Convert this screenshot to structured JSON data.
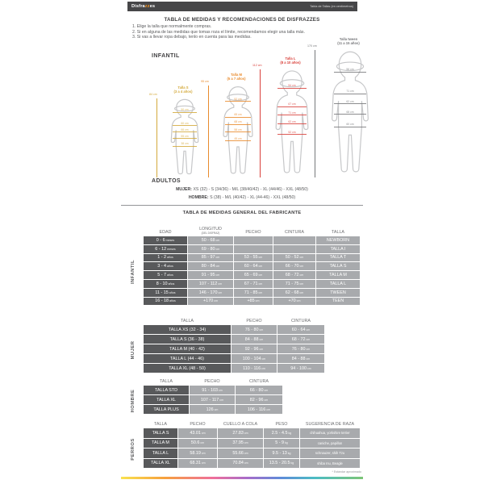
{
  "header": {
    "logo_prefix": "Disfra",
    "logo_accent": "zz",
    "logo_suffix": "es",
    "right_text": "Tabla de Tallas (en centímetros)"
  },
  "intro": {
    "title": "TABLA DE MEDIDAS Y RECOMENDACIONES DE DISFRAZZES",
    "steps": [
      "1. Elige la talla que normalmente compras.",
      "2. Si en alguna de las medidas que tomas roza el límite, recomendamos elegir una talla más.",
      "3. Si vas a llevar ropa debajo, tenlo en cuenta para las medidas."
    ]
  },
  "sections": {
    "infantil_heading": "INFANTIL",
    "adultos_heading": "ADULTOS",
    "fabricante_title": "TABLA DE MEDIDAS GENERAL DEL FABRICANTE"
  },
  "figures": [
    {
      "talla": "Talla S",
      "edad": "(3 a 4 años)",
      "altura": "84 cm",
      "color": "#d4aa3c",
      "medidas": [
        "50 cm",
        "60 cm",
        "66 cm",
        "55 cm",
        "38 cm"
      ]
    },
    {
      "talla": "Talla M",
      "edad": "(5 a 7 años)",
      "altura": "95 cm",
      "color": "#e98b2d",
      "medidas": [
        "52 cm",
        "65 cm",
        "68 cm",
        "58 cm",
        "45 cm"
      ]
    },
    {
      "talla": "Talla L",
      "edad": "(8 a 10 años)",
      "altura": "112 cm",
      "color": "#d9403a",
      "medidas": [
        "54 cm",
        "67 cm",
        "71 cm",
        "62 cm",
        "52 cm"
      ]
    },
    {
      "talla": "Talla tween",
      "edad": "(11 a 15 años)",
      "altura": "170 cm",
      "color": "#77787b",
      "medidas": [
        "56 cm",
        "71 cm",
        "62 cm",
        "68 cm",
        "60 cm"
      ]
    }
  ],
  "adultos": {
    "mujer_label": "MUJER:",
    "mujer": "XS (32) - S (34/36) - M/L (38/40/42) - XL (44/46) - XXL (48/50)",
    "hombre_label": "HOMBRE:",
    "hombre": "S (38) - M/L (40/42) - XL (44-46) - XXL (48/50)"
  },
  "tables": {
    "infantil": {
      "side_label": "INFANTIL",
      "headers": [
        "EDAD",
        "LONGITUD",
        "PECHO",
        "CINTURA",
        "TALLA"
      ],
      "header_sub": "(DEL DISFRAZ)",
      "rows": [
        [
          "0 - 6 meses",
          "50 - 68 cm",
          "",
          "",
          "NEWBORN"
        ],
        [
          "6 - 12 meses",
          "69 - 80 cm",
          "",
          "",
          "TALLA I"
        ],
        [
          "1 - 2 años",
          "85 - 97 cm",
          "53 - 55 cm",
          "50 - 52 cm",
          "TALLA T"
        ],
        [
          "3 - 4 años",
          "80 - 84 cm",
          "60 - 64 cm",
          "66 - 70 cm",
          "TALLA S"
        ],
        [
          "5 - 7 años",
          "91 - 95 cm",
          "65 - 69 cm",
          "68 - 72 cm",
          "TALLA M"
        ],
        [
          "8 - 10 años",
          "107 - 112 cm",
          "67 - 71 cm",
          "71 - 75 cm",
          "TALLA L"
        ],
        [
          "11 - 15 años",
          "146 - 170 cm",
          "71 - 85 cm",
          "62 - 68 cm",
          "TWEEN"
        ],
        [
          "16 - 18 años",
          "+170 cm",
          "+85 cm",
          "+70 cm",
          "TEEN"
        ]
      ]
    },
    "mujer": {
      "side_label": "MUJER",
      "headers": [
        "TALLA",
        "PECHO",
        "CINTURA"
      ],
      "rows": [
        [
          "TALLA XS (32 - 34)",
          "76 - 80 cm",
          "60 - 64 cm"
        ],
        [
          "TALLA S (36 - 38)",
          "84 - 88 cm",
          "68 - 72 cm"
        ],
        [
          "TALLA M (40 - 42)",
          "92 - 96 cm",
          "76 - 80 cm"
        ],
        [
          "TALLA L (44 - 46)",
          "100 - 104 cm",
          "84 - 88 cm"
        ],
        [
          "TALLA XL (48 - 50)",
          "110 - 116 cm",
          "94 - 100 cm"
        ]
      ]
    },
    "hombre": {
      "side_label": "HOMBRE",
      "headers": [
        "TALLA",
        "PECHO",
        "CINTURA"
      ],
      "rows": [
        [
          "TALLA STD",
          "91 - 103 cm",
          "66 - 80 cm"
        ],
        [
          "TALLA XL",
          "107 - 117 cm",
          "82 - 96 cm"
        ],
        [
          "TALLA PLUS",
          "126 cm",
          "106 - 116 cm"
        ]
      ]
    },
    "perros": {
      "side_label": "PERROS",
      "headers": [
        "TALLA",
        "PECHO",
        "CUELLO A COLA",
        "PESO",
        "SUGERENCIA DE RAZA"
      ],
      "rows": [
        [
          "TALLA S",
          "43.01 cm",
          "27.83 cm",
          "2.5 - 4.5 kg",
          "chihuahua, yorkshire terrier"
        ],
        [
          "TALLA M",
          "50.6 cm",
          "37.95 cm",
          "5 - 9 kg",
          "caniche, papillon"
        ],
        [
          "TALLA L",
          "58.19 cm",
          "55.66 cm",
          "9.5 - 13 kg",
          "schnauzer, shih Tzu"
        ],
        [
          "TALLA XL",
          "68.31 cm",
          "70.84 cm",
          "13.5 - 20.5 kg",
          "shiba Inu, Beagle"
        ]
      ]
    }
  },
  "footnote": "* Estándar aproximado",
  "colors": {
    "accent_orange": "#f7941d",
    "header_bar": "#464648",
    "dark_cell": "#58595b",
    "light_cell": "#a8aaad"
  }
}
